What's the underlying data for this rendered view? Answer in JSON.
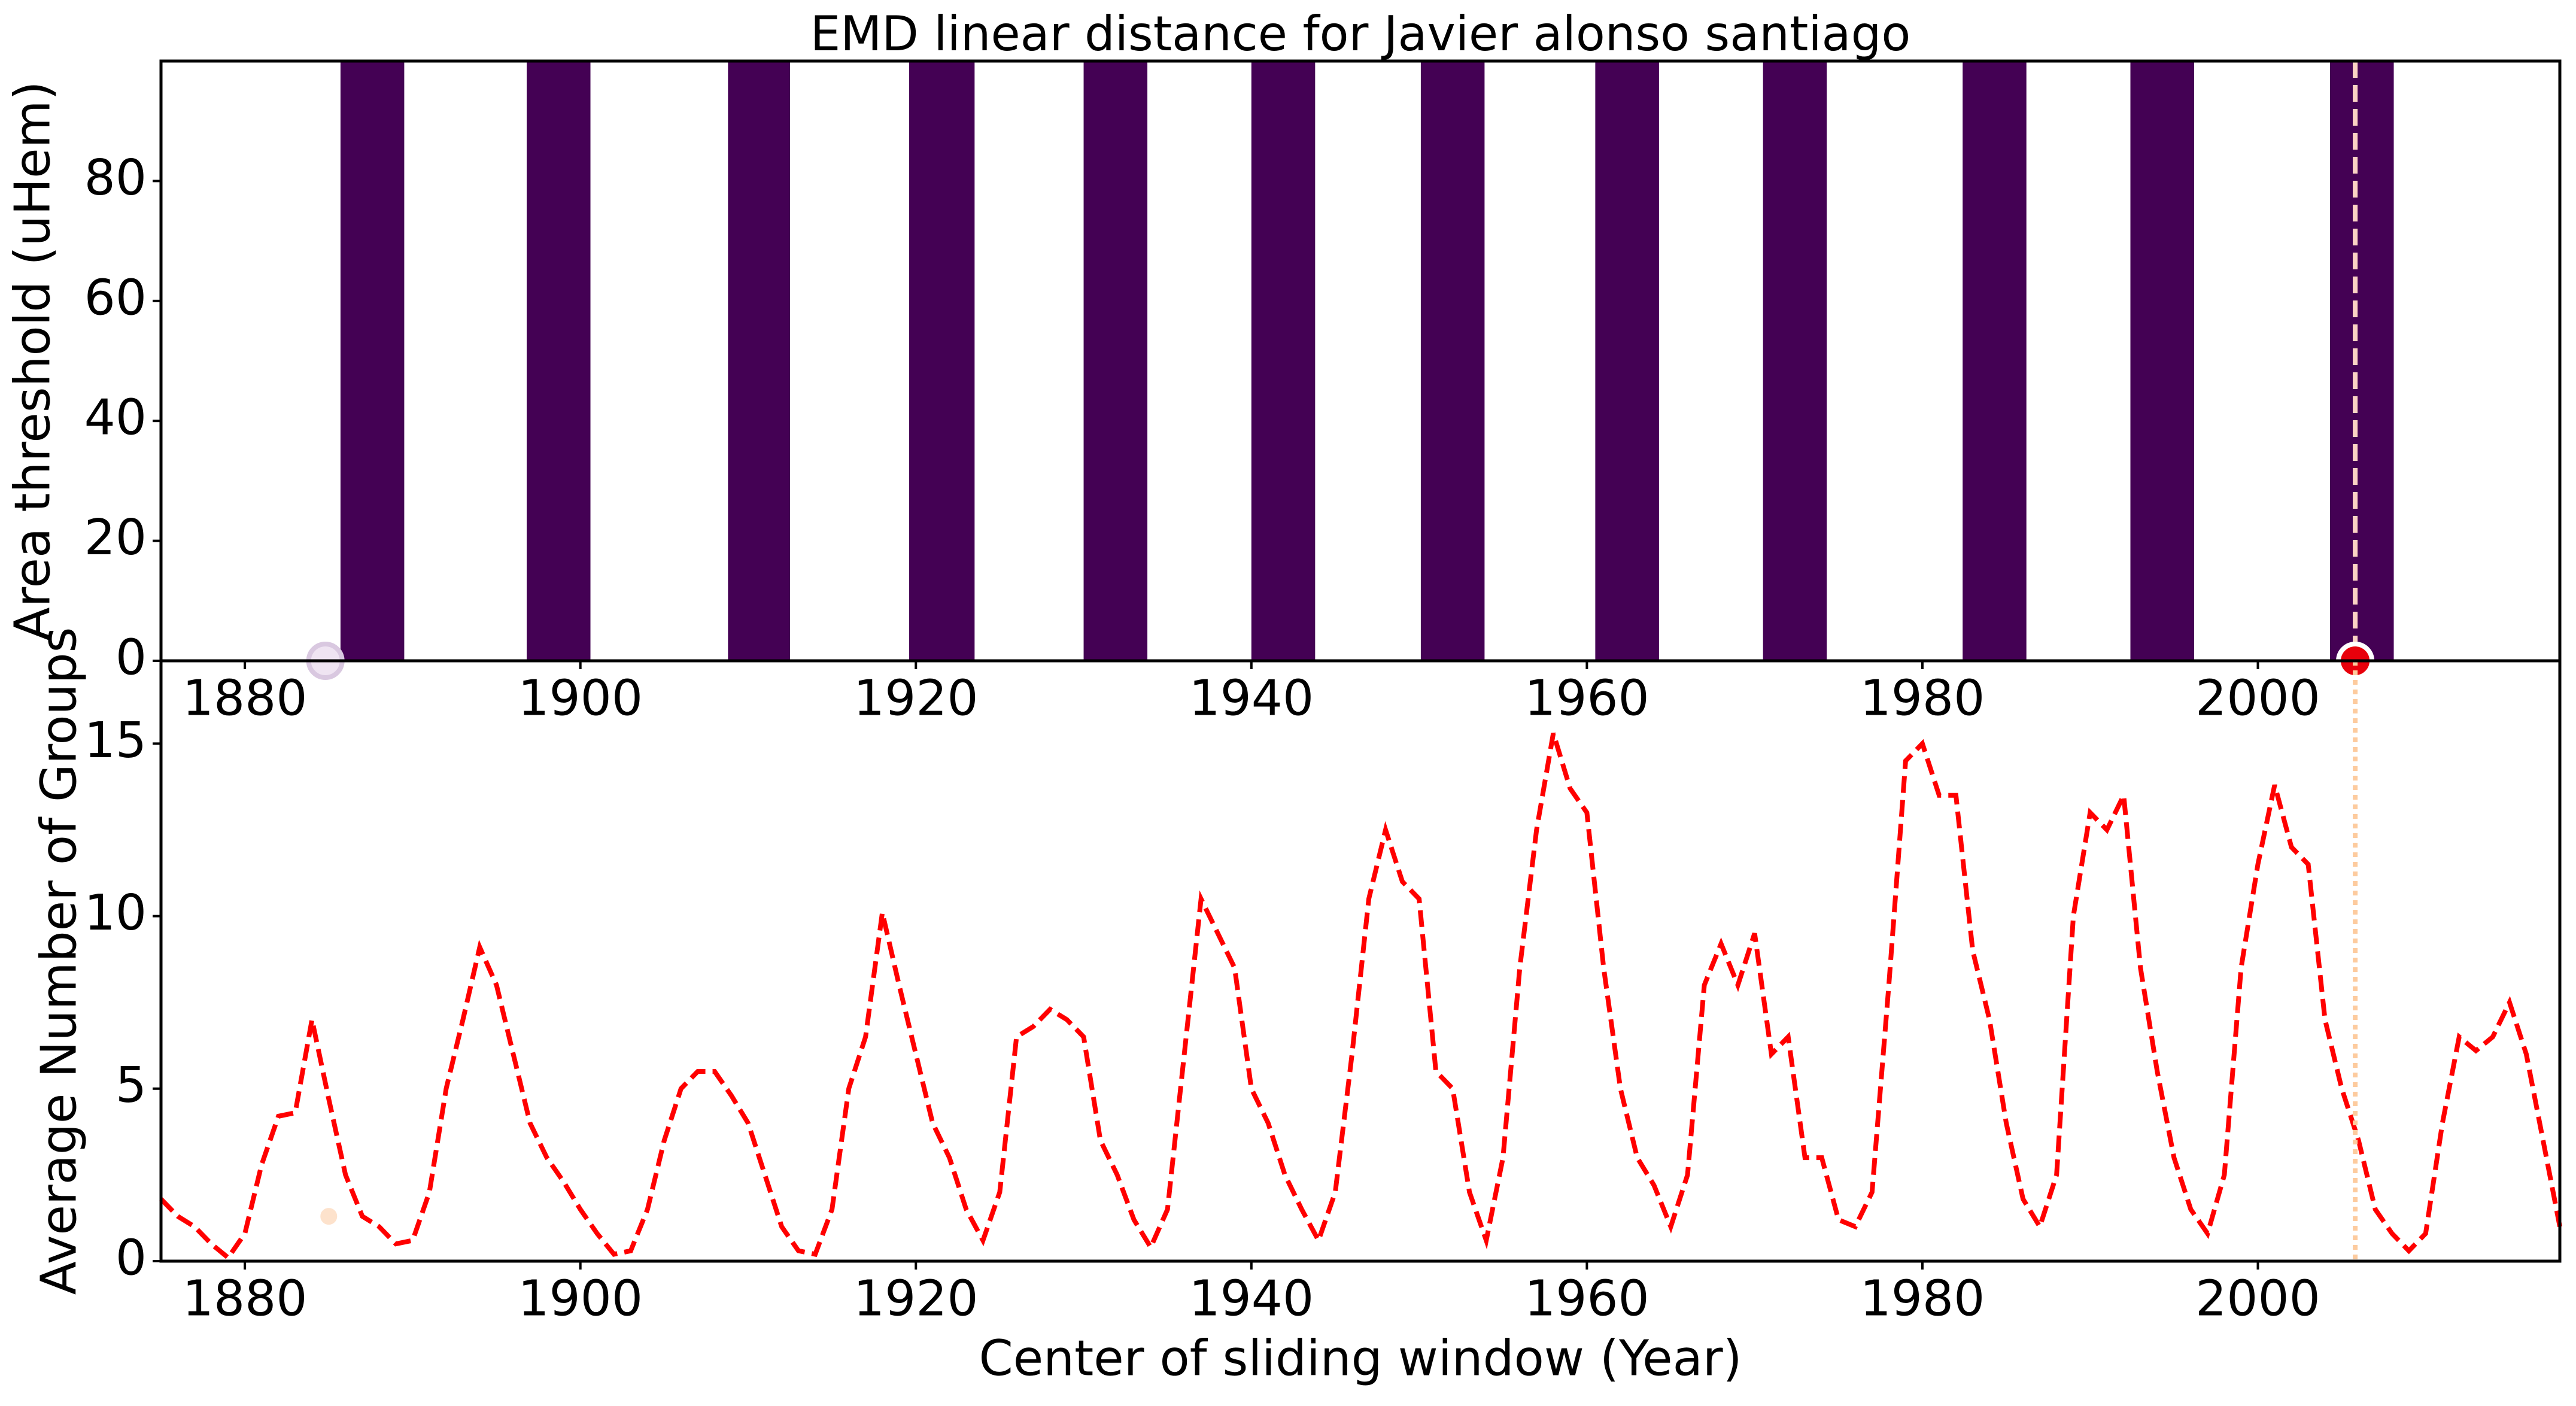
{
  "chart_data": [
    {
      "type": "span",
      "title": "EMD linear distance for Javier alonso santiago",
      "ylabel": "Area threshold (uHem)",
      "x_start": [
        1885.7,
        1896.8,
        1908.8,
        1919.6,
        1930.0,
        1940.0,
        1950.1,
        1960.5,
        1970.5,
        1982.4,
        1992.4,
        2004.3
      ],
      "x_end": [
        1889.5,
        1900.6,
        1912.5,
        1923.5,
        1933.8,
        1943.8,
        1953.9,
        1964.3,
        1974.3,
        1986.2,
        1996.2,
        2008.1
      ],
      "values": [
        100,
        100,
        100,
        100,
        100,
        100,
        100,
        100,
        100,
        100,
        100,
        100
      ],
      "color": "#440154",
      "xlim": [
        1875,
        2018
      ],
      "ylim": [
        0,
        100
      ],
      "xticks": [
        1880,
        1900,
        1920,
        1940,
        1960,
        1980,
        2000
      ],
      "yticks": [
        0,
        20,
        40,
        60,
        80
      ],
      "vline": {
        "x": 2005.8,
        "color": "#fbd3c4",
        "style": "dashed"
      },
      "markers": {
        "x": [
          1884.8,
          2005.8
        ],
        "y": [
          0,
          0
        ],
        "fill": [
          "#efe4f2",
          "#e8000b"
        ],
        "edge": [
          "#d9c8e0",
          "#ffffff"
        ]
      }
    },
    {
      "type": "line",
      "ylabel": "Average Number of Groups",
      "xlabel": "Center of sliding window (Year)",
      "x": [
        1875,
        1876,
        1877,
        1878,
        1879,
        1880,
        1881,
        1882,
        1883,
        1884,
        1885,
        1886,
        1887,
        1888,
        1889,
        1890,
        1891,
        1892,
        1893,
        1894,
        1895,
        1896,
        1897,
        1898,
        1899,
        1900,
        1901,
        1902,
        1903,
        1904,
        1905,
        1906,
        1907,
        1908,
        1909,
        1910,
        1911,
        1912,
        1913,
        1914,
        1915,
        1916,
        1917,
        1918,
        1919,
        1920,
        1921,
        1922,
        1923,
        1924,
        1925,
        1926,
        1927,
        1928,
        1929,
        1930,
        1931,
        1932,
        1933,
        1934,
        1935,
        1936,
        1937,
        1938,
        1939,
        1940,
        1941,
        1942,
        1943,
        1944,
        1945,
        1946,
        1947,
        1948,
        1949,
        1950,
        1951,
        1952,
        1953,
        1954,
        1955,
        1956,
        1957,
        1958,
        1959,
        1960,
        1961,
        1962,
        1963,
        1964,
        1965,
        1966,
        1967,
        1968,
        1969,
        1970,
        1971,
        1972,
        1973,
        1974,
        1975,
        1976,
        1977,
        1978,
        1979,
        1980,
        1981,
        1982,
        1983,
        1984,
        1985,
        1986,
        1987,
        1988,
        1989,
        1990,
        1991,
        1992,
        1993,
        1994,
        1995,
        1996,
        1997,
        1998,
        1999,
        2000,
        2001,
        2002,
        2003,
        2004,
        2005,
        2006,
        2007,
        2008,
        2009,
        2010,
        2011,
        2012,
        2013,
        2014,
        2015,
        2016,
        2017,
        2018
      ],
      "series": [
        {
          "color": "#ff0000",
          "style": "dashed",
          "values": [
            1.8,
            1.3,
            1.0,
            0.5,
            0.1,
            0.8,
            2.8,
            4.2,
            4.3,
            7.0,
            4.7,
            2.5,
            1.3,
            1.0,
            0.5,
            0.6,
            2.0,
            5.0,
            7.0,
            9.1,
            8.0,
            6.0,
            4.0,
            3.0,
            2.3,
            1.5,
            0.8,
            0.2,
            0.3,
            1.5,
            3.5,
            5.0,
            5.5,
            5.5,
            4.8,
            4.0,
            2.5,
            1.0,
            0.3,
            0.2,
            1.5,
            5.0,
            6.5,
            10.1,
            8.0,
            6.0,
            4.0,
            3.0,
            1.5,
            0.6,
            2.0,
            6.5,
            6.8,
            7.3,
            7.0,
            6.5,
            3.5,
            2.5,
            1.2,
            0.4,
            1.5,
            6.0,
            10.5,
            9.5,
            8.5,
            5.0,
            4.0,
            2.5,
            1.5,
            0.6,
            2.0,
            6.0,
            10.5,
            12.5,
            11.0,
            10.5,
            5.5,
            5.0,
            2.0,
            0.6,
            3.0,
            8.5,
            12.5,
            15.3,
            13.7,
            13.0,
            8.5,
            5.0,
            3.0,
            2.2,
            1.0,
            2.5,
            8.0,
            9.2,
            8.0,
            9.5,
            6.0,
            6.5,
            3.0,
            3.0,
            1.2,
            1.0,
            2.0,
            8.0,
            14.5,
            15.0,
            13.5,
            13.5,
            9.0,
            7.0,
            4.0,
            1.8,
            1.0,
            2.5,
            10.0,
            13.0,
            12.5,
            13.5,
            8.5,
            5.5,
            3.0,
            1.5,
            0.8,
            2.5,
            8.5,
            11.5,
            13.8,
            12.0,
            11.5,
            7.0,
            5.0,
            3.5,
            1.5,
            0.8,
            0.3,
            0.8,
            4.0,
            6.5,
            6.1,
            6.5,
            7.5,
            6.0,
            3.5,
            1.0
          ]
        }
      ],
      "xlim": [
        1875,
        2018
      ],
      "ylim": [
        0,
        17.4
      ],
      "xticks": [
        1880,
        1900,
        1920,
        1940,
        1960,
        1980,
        2000
      ],
      "yticks": [
        0,
        5,
        10,
        15
      ],
      "vline": {
        "x": 2005.8,
        "color": "#fdcb9e",
        "style": "dotted"
      },
      "markers": {
        "x": [
          1885
        ],
        "y": [
          1.3
        ],
        "fill": [
          "#fde2cc"
        ],
        "edge": [
          "#fde2cc"
        ]
      }
    }
  ]
}
